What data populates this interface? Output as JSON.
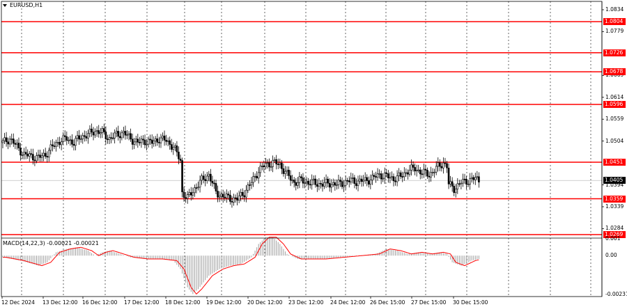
{
  "window": {
    "symbol_title": "EURUSD,H1"
  },
  "y_axis_labels": [
    "1.0834",
    "1.0779",
    "1.0669",
    "1.0614",
    "1.0559",
    "1.0504",
    "1.0394",
    "1.0339",
    "1.0284"
  ],
  "levels": [
    "1.0804",
    "1.0726",
    "1.0678",
    "1.0596",
    "1.0451",
    "1.0359",
    "1.0269"
  ],
  "current_price": "1.0405",
  "macd": {
    "title": "MACD(14,22,3) -0.00021 -0.00021",
    "axis_labels": [
      "0.001",
      "0.00",
      "-0.00231"
    ]
  },
  "x_axis_labels": [
    "12 Dec 2024",
    "13 Dec 12:00",
    "16 Dec 12:00",
    "17 Dec 12:00",
    "18 Dec 12:00",
    "19 Dec 12:00",
    "20 Dec 12:00",
    "23 Dec 12:00",
    "24 Dec 12:00",
    "26 Dec 15:00",
    "27 Dec 15:00",
    "30 Dec 15:00"
  ],
  "colors": {
    "level_line": "#ff0000",
    "candles": "#000000",
    "macd_signal": "#ff0000",
    "macd_hist": "#a0a0a0"
  },
  "chart_data": {
    "type": "candlestick",
    "symbol": "EURUSD",
    "timeframe": "H1",
    "ylim": [
      1.0262,
      1.0855
    ],
    "close_path": [
      [
        0,
        1.05
      ],
      [
        4,
        1.051
      ],
      [
        8,
        1.049
      ],
      [
        12,
        1.047
      ],
      [
        16,
        1.0466
      ],
      [
        20,
        1.0462
      ],
      [
        24,
        1.047
      ],
      [
        28,
        1.049
      ],
      [
        32,
        1.0505
      ],
      [
        36,
        1.051
      ],
      [
        40,
        1.05
      ],
      [
        44,
        1.0515
      ],
      [
        48,
        1.052
      ],
      [
        52,
        1.053
      ],
      [
        56,
        1.0525
      ],
      [
        60,
        1.051
      ],
      [
        64,
        1.052
      ],
      [
        68,
        1.0525
      ],
      [
        72,
        1.051
      ],
      [
        76,
        1.05
      ],
      [
        80,
        1.0505
      ],
      [
        84,
        1.05
      ],
      [
        88,
        1.051
      ],
      [
        92,
        1.0505
      ],
      [
        96,
        1.049
      ],
      [
        100,
        1.0455
      ],
      [
        101,
        1.0375
      ],
      [
        104,
        1.036
      ],
      [
        108,
        1.0385
      ],
      [
        112,
        1.0405
      ],
      [
        116,
        1.042
      ],
      [
        120,
        1.0375
      ],
      [
        124,
        1.0365
      ],
      [
        128,
        1.036
      ],
      [
        132,
        1.0358
      ],
      [
        136,
        1.0375
      ],
      [
        140,
        1.04
      ],
      [
        144,
        1.043
      ],
      [
        148,
        1.0445
      ],
      [
        152,
        1.045
      ],
      [
        156,
        1.0445
      ],
      [
        160,
        1.042
      ],
      [
        164,
        1.04
      ],
      [
        168,
        1.0405
      ],
      [
        172,
        1.04
      ],
      [
        176,
        1.0398
      ],
      [
        180,
        1.0396
      ],
      [
        184,
        1.0398
      ],
      [
        188,
        1.0395
      ],
      [
        192,
        1.04
      ],
      [
        196,
        1.0405
      ],
      [
        200,
        1.0402
      ],
      [
        204,
        1.0405
      ],
      [
        208,
        1.041
      ],
      [
        212,
        1.042
      ],
      [
        216,
        1.0415
      ],
      [
        220,
        1.041
      ],
      [
        224,
        1.0415
      ],
      [
        228,
        1.043
      ],
      [
        232,
        1.0435
      ],
      [
        236,
        1.0425
      ],
      [
        240,
        1.042
      ],
      [
        244,
        1.0435
      ],
      [
        248,
        1.045
      ],
      [
        250,
        1.044
      ],
      [
        251,
        1.0395
      ],
      [
        254,
        1.0385
      ],
      [
        258,
        1.04
      ],
      [
        262,
        1.0405
      ],
      [
        266,
        1.041
      ],
      [
        268,
        1.0405
      ]
    ],
    "macd_histogram_path": [
      [
        0,
        -0.0001
      ],
      [
        10,
        -0.0003
      ],
      [
        20,
        -0.0006
      ],
      [
        25,
        -0.0004
      ],
      [
        30,
        0.0002
      ],
      [
        36,
        0.0004
      ],
      [
        42,
        0.0005
      ],
      [
        48,
        0.0003
      ],
      [
        52,
        0.0
      ],
      [
        56,
        0.0002
      ],
      [
        60,
        0.0003
      ],
      [
        66,
        0.0001
      ],
      [
        72,
        -0.0001
      ],
      [
        80,
        -0.0002
      ],
      [
        88,
        -0.0002
      ],
      [
        96,
        -0.0003
      ],
      [
        100,
        -0.0008
      ],
      [
        104,
        -0.0019
      ],
      [
        107,
        -0.0023
      ],
      [
        110,
        -0.002
      ],
      [
        116,
        -0.0012
      ],
      [
        122,
        -0.0008
      ],
      [
        128,
        -0.0006
      ],
      [
        134,
        -0.0005
      ],
      [
        140,
        -0.0001
      ],
      [
        144,
        0.0007
      ],
      [
        148,
        0.0011
      ],
      [
        152,
        0.0011
      ],
      [
        156,
        0.0007
      ],
      [
        160,
        0.0001
      ],
      [
        166,
        -0.0002
      ],
      [
        172,
        -0.0002
      ],
      [
        180,
        -0.0002
      ],
      [
        190,
        -0.0001
      ],
      [
        200,
        0.0
      ],
      [
        210,
        0.0001
      ],
      [
        216,
        0.0004
      ],
      [
        222,
        0.0003
      ],
      [
        228,
        0.0001
      ],
      [
        234,
        0.0002
      ],
      [
        240,
        0.0001
      ],
      [
        246,
        0.0002
      ],
      [
        250,
        0.0001
      ],
      [
        253,
        -0.0004
      ],
      [
        258,
        -0.0006
      ],
      [
        264,
        -0.0003
      ],
      [
        268,
        -0.0002
      ]
    ],
    "macd_ylim": [
      -0.00245,
      0.00105
    ]
  }
}
